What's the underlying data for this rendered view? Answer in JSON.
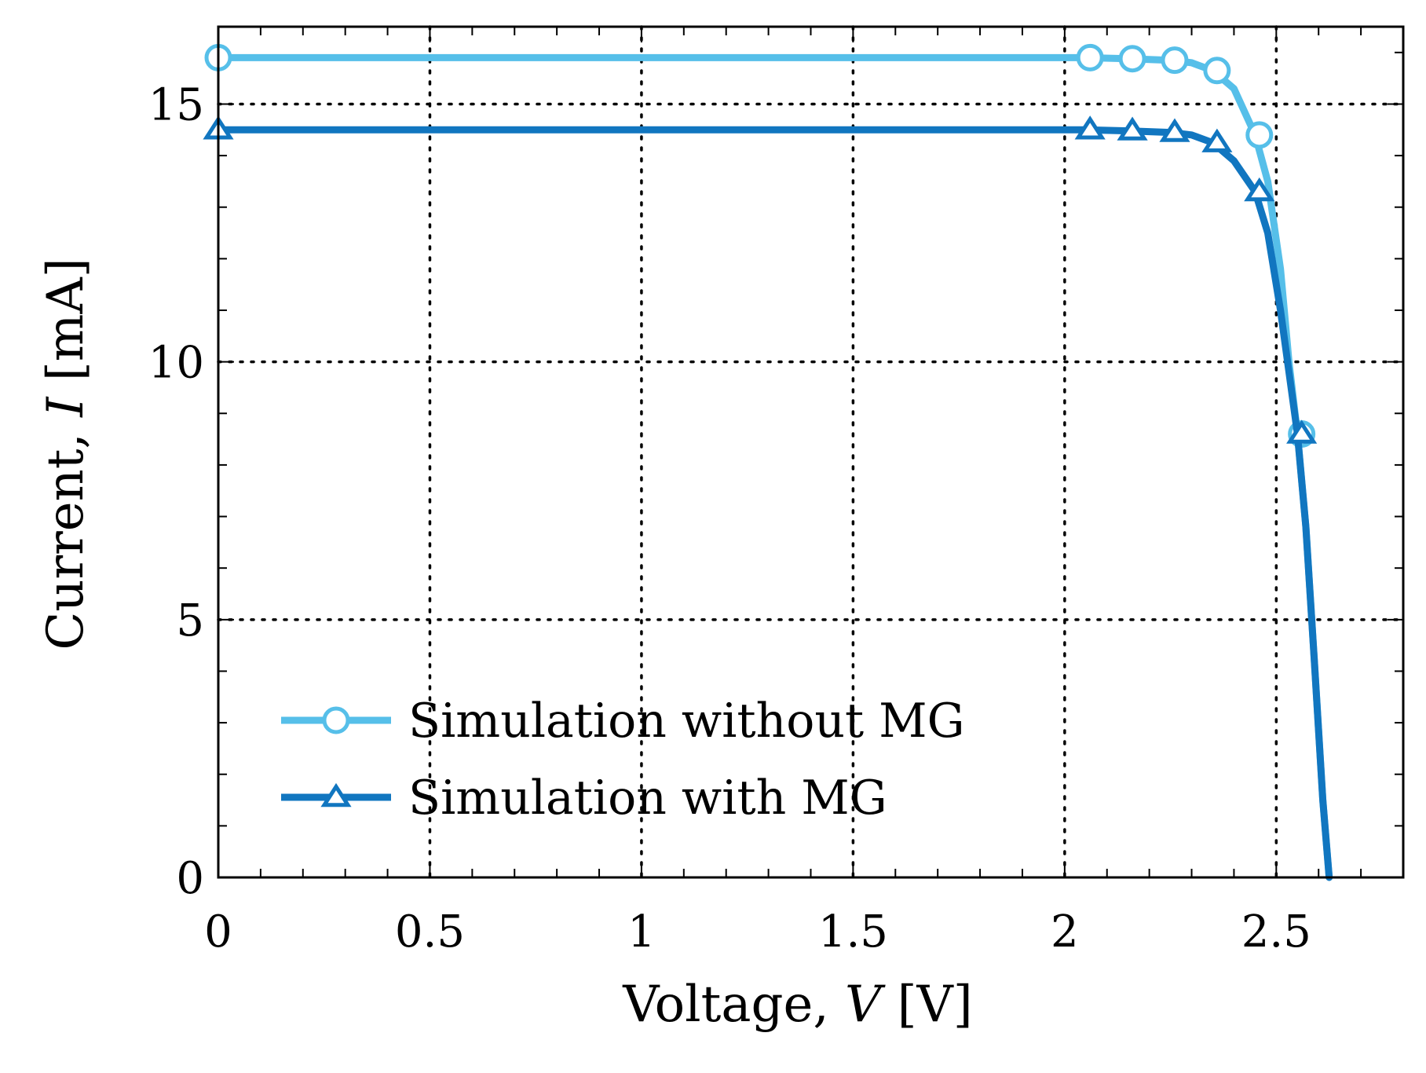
{
  "chart_data": {
    "type": "line",
    "title": "",
    "xlabel_prefix": "Voltage, ",
    "xlabel_var": "V",
    "xlabel_unit": " [V]",
    "ylabel_prefix": "Current, ",
    "ylabel_var": "I",
    "ylabel_unit": " [mA]",
    "xlim": [
      0,
      2.8
    ],
    "ylim": [
      0,
      16.5
    ],
    "xticks": [
      0,
      0.5,
      1,
      1.5,
      2,
      2.5
    ],
    "xtick_labels": [
      "0",
      "0.5",
      "1",
      "1.5",
      "2",
      "2.5"
    ],
    "yticks": [
      0,
      5,
      10,
      15
    ],
    "ytick_labels": [
      "0",
      "5",
      "10",
      "15"
    ],
    "grid": true,
    "legend_position": "bottom-left",
    "series": [
      {
        "name": "Simulation without MG",
        "color": "#56bfe9",
        "marker": "circle",
        "curve": [
          [
            0,
            15.9
          ],
          [
            1.7,
            15.9
          ],
          [
            2.05,
            15.9
          ],
          [
            2.15,
            15.88
          ],
          [
            2.25,
            15.85
          ],
          [
            2.3,
            15.8
          ],
          [
            2.35,
            15.65
          ],
          [
            2.4,
            15.3
          ],
          [
            2.45,
            14.4
          ],
          [
            2.48,
            13.5
          ],
          [
            2.51,
            11.8
          ],
          [
            2.53,
            10.0
          ],
          [
            2.55,
            8.6
          ],
          [
            2.57,
            6.8
          ],
          [
            2.59,
            4.2
          ],
          [
            2.61,
            1.5
          ],
          [
            2.625,
            0
          ]
        ],
        "markers": [
          [
            0,
            15.9
          ],
          [
            2.06,
            15.9
          ],
          [
            2.16,
            15.88
          ],
          [
            2.26,
            15.85
          ],
          [
            2.36,
            15.65
          ],
          [
            2.46,
            14.4
          ],
          [
            2.56,
            8.6
          ]
        ]
      },
      {
        "name": "Simulation with MG",
        "color": "#1176c0",
        "marker": "triangle",
        "curve": [
          [
            0,
            14.5
          ],
          [
            1.7,
            14.5
          ],
          [
            2.05,
            14.5
          ],
          [
            2.15,
            14.48
          ],
          [
            2.25,
            14.45
          ],
          [
            2.3,
            14.4
          ],
          [
            2.35,
            14.25
          ],
          [
            2.4,
            13.9
          ],
          [
            2.45,
            13.3
          ],
          [
            2.48,
            12.5
          ],
          [
            2.51,
            11.0
          ],
          [
            2.53,
            9.8
          ],
          [
            2.55,
            8.6
          ],
          [
            2.57,
            6.8
          ],
          [
            2.59,
            4.2
          ],
          [
            2.61,
            1.5
          ],
          [
            2.625,
            0
          ]
        ],
        "markers": [
          [
            0,
            14.5
          ],
          [
            2.06,
            14.5
          ],
          [
            2.16,
            14.48
          ],
          [
            2.26,
            14.45
          ],
          [
            2.36,
            14.25
          ],
          [
            2.46,
            13.3
          ],
          [
            2.56,
            8.6
          ]
        ]
      }
    ]
  }
}
